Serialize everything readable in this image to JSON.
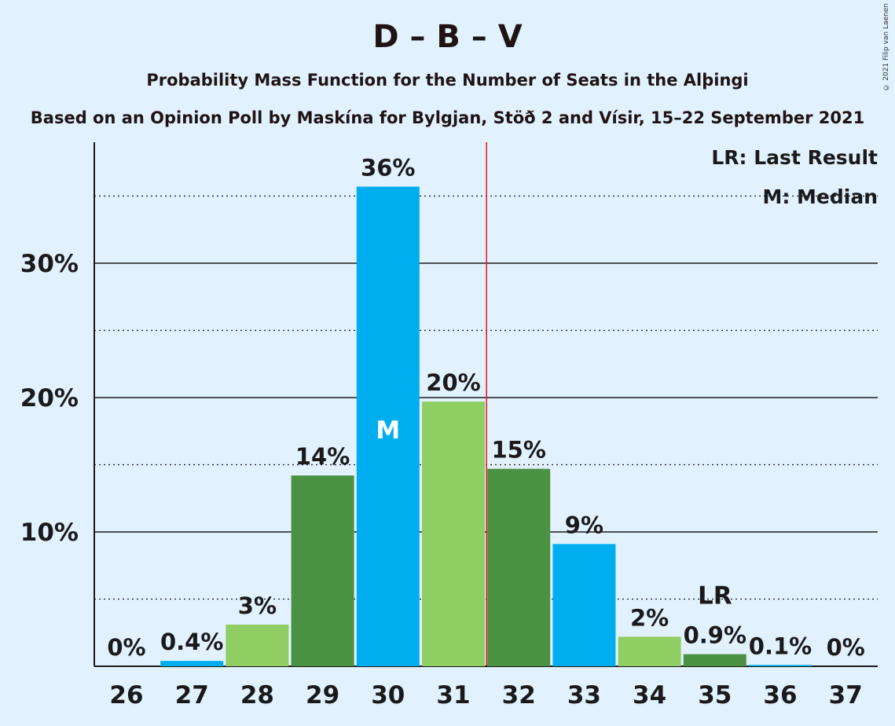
{
  "title": "D – B – V",
  "subtitle": "Probability Mass Function for the Number of Seats in the Alþingi",
  "subtitle2": "Based on an Opinion Poll by Maskína for Bylgjan, Stöð 2 and Vísir, 15–22 September 2021",
  "copyright": "© 2021 Filip van Laenen",
  "legend": {
    "last_result": "LR: Last Result",
    "median": "M: Median"
  },
  "chart_data": {
    "type": "bar",
    "categories": [
      "26",
      "27",
      "28",
      "29",
      "30",
      "31",
      "32",
      "33",
      "34",
      "35",
      "36",
      "37"
    ],
    "values": [
      0,
      0.4,
      3.1,
      14.2,
      35.7,
      19.7,
      14.7,
      9.1,
      2.2,
      0.9,
      0.1,
      0
    ],
    "labels": [
      "0%",
      "0.4%",
      "3%",
      "14%",
      "36%",
      "20%",
      "15%",
      "9%",
      "2%",
      "0.9%",
      "0.1%",
      "0%"
    ],
    "bar_colors": [
      "#00aeef",
      "#00aeef",
      "#8fce62",
      "#4a9141",
      "#00aeef",
      "#8fce62",
      "#4a9141",
      "#00aeef",
      "#8fce62",
      "#4a9141",
      "#00aeef",
      "#00aeef"
    ],
    "yticks": [
      10,
      20,
      30
    ],
    "ytick_labels": [
      "10%",
      "20%",
      "30%"
    ],
    "ylim": [
      0,
      39
    ],
    "median_category": "30",
    "median_label": "M",
    "last_result_category": "35",
    "last_result_label": "LR",
    "majority_line_after": "31",
    "majority_line_color": "#e8141b"
  }
}
